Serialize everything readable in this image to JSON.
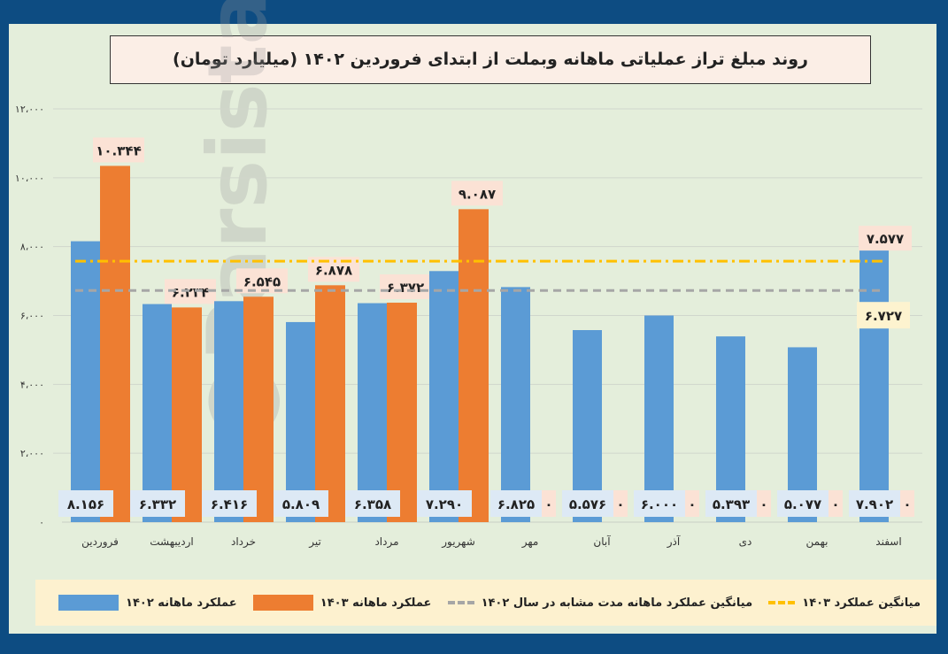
{
  "chart_data": {
    "type": "bar",
    "title": "روند مبلغ تراز عملیاتی ماهانه وبملت از ابتدای فروردین ۱۴۰۲ (میلیارد تومان)",
    "categories": [
      "فروردین",
      "اردیبهشت",
      "خرداد",
      "تیر",
      "مرداد",
      "شهریور",
      "مهر",
      "آبان",
      "آذر",
      "دی",
      "بهمن",
      "اسفند"
    ],
    "series": [
      {
        "name": "عملکرد ماهانه ۱۴۰۲",
        "color": "#5b9bd5",
        "values": [
          8156,
          6332,
          6416,
          5809,
          6358,
          7290,
          6825,
          5576,
          6000,
          5393,
          5077,
          7902
        ],
        "labels": [
          "۸.۱۵۶",
          "۶.۳۳۲",
          "۶.۴۱۶",
          "۵.۸۰۹",
          "۶.۳۵۸",
          "۷.۲۹۰",
          "۶.۸۲۵",
          "۵.۵۷۶",
          "۶.۰۰۰",
          "۵.۳۹۳",
          "۵.۰۷۷",
          "۷.۹۰۲"
        ]
      },
      {
        "name": "عملکرد ماهانه ۱۴۰۳",
        "color": "#ed7d31",
        "values": [
          10344,
          6234,
          6545,
          6878,
          6372,
          9087,
          0,
          0,
          0,
          0,
          0,
          0
        ],
        "labels": [
          "۱۰.۳۴۴",
          "۶.۲۳۴",
          "۶.۵۴۵",
          "۶.۸۷۸",
          "۶.۳۷۲",
          "۹.۰۸۷",
          "۰",
          "۰",
          "۰",
          "۰",
          "۰",
          "۰"
        ]
      }
    ],
    "reference_lines": [
      {
        "name": "میانگین عملکرد ماهانه مدت مشابه در سال ۱۴۰۲",
        "value": 6727,
        "label": "۶.۷۲۷",
        "color": "#a6a6a6",
        "style": "dashed"
      },
      {
        "name": "میانگین عملکرد ۱۴۰۳",
        "value": 7577,
        "label": "۷.۵۷۷",
        "color": "#ffc000",
        "style": "dash-dot"
      }
    ],
    "ylim": [
      0,
      12000
    ],
    "yticks": [
      0,
      2000,
      4000,
      6000,
      8000,
      10000,
      12000
    ],
    "ytick_labels": [
      "۰",
      "۲،۰۰۰",
      "۴،۰۰۰",
      "۶،۰۰۰",
      "۸،۰۰۰",
      "۱۰،۰۰۰",
      "۱۲،۰۰۰"
    ],
    "grid": true,
    "legend_position": "bottom",
    "xlabel": "",
    "ylabel": ""
  },
  "watermark": "@Parsistahlil"
}
